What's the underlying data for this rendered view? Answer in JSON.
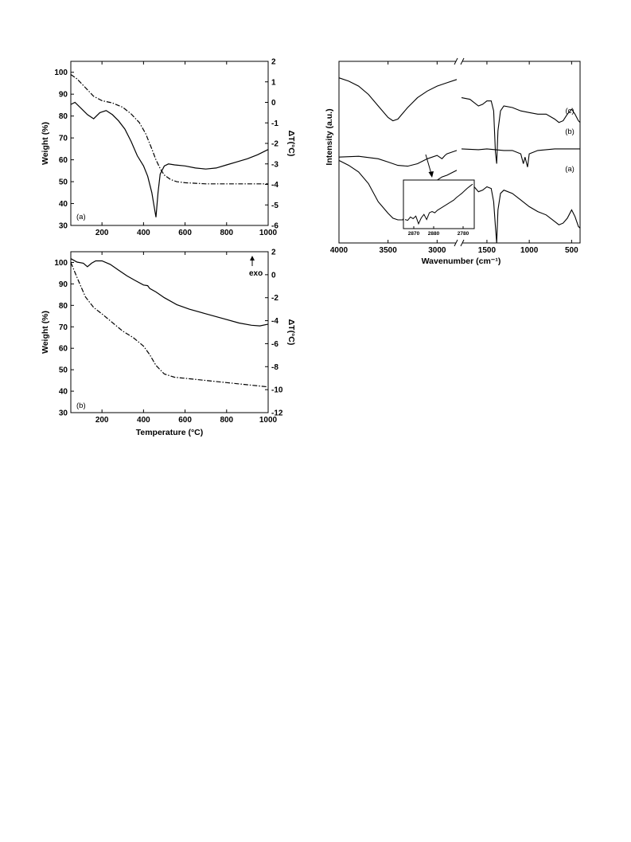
{
  "chart_data": [
    {
      "type": "line",
      "panel_label": "(a)",
      "xlim": [
        50,
        1000
      ],
      "ylim_left": [
        30,
        105
      ],
      "ylim_right": [
        -6,
        2
      ],
      "xticks": [
        200,
        400,
        600,
        800,
        1000
      ],
      "yticks_left": [
        30,
        40,
        50,
        60,
        70,
        80,
        90,
        100
      ],
      "yticks_right": [
        -6,
        -5,
        -4,
        -3,
        -2,
        -1,
        0,
        1,
        2
      ],
      "ylabel": "Weight (%)",
      "ylabel_right": "ΔT(°C)",
      "xlabel": "",
      "series": [
        {
          "axis": "left",
          "style": "dashdot",
          "x": [
            50,
            80,
            120,
            160,
            200,
            250,
            300,
            340,
            380,
            410,
            440,
            460,
            480,
            500,
            530,
            560,
            600,
            700,
            800,
            900,
            1000
          ],
          "y": [
            99,
            97,
            93,
            89,
            87,
            86,
            84,
            81,
            77,
            72,
            65,
            60,
            56,
            53,
            51,
            50,
            49.5,
            49,
            49,
            49,
            49
          ]
        },
        {
          "axis": "right",
          "style": "solid",
          "x": [
            50,
            70,
            100,
            130,
            160,
            190,
            220,
            250,
            280,
            310,
            340,
            370,
            400,
            420,
            440,
            450,
            460,
            470,
            480,
            500,
            520,
            550,
            600,
            650,
            700,
            750,
            800,
            850,
            900,
            950,
            1000
          ],
          "y": [
            -0.1,
            0.0,
            -0.3,
            -0.6,
            -0.8,
            -0.5,
            -0.4,
            -0.6,
            -0.9,
            -1.3,
            -1.9,
            -2.6,
            -3.1,
            -3.6,
            -4.4,
            -5.0,
            -5.6,
            -4.4,
            -3.5,
            -3.1,
            -3.0,
            -3.05,
            -3.1,
            -3.2,
            -3.25,
            -3.2,
            -3.05,
            -2.9,
            -2.75,
            -2.55,
            -2.3
          ]
        }
      ]
    },
    {
      "type": "line",
      "panel_label": "(b)",
      "annotation": "exo",
      "xlim": [
        50,
        1000
      ],
      "ylim_left": [
        30,
        105
      ],
      "ylim_right": [
        -12,
        2
      ],
      "xticks": [
        200,
        400,
        600,
        800,
        1000
      ],
      "yticks_left": [
        30,
        40,
        50,
        60,
        70,
        80,
        90,
        100
      ],
      "yticks_right": [
        -12,
        -10,
        -8,
        -6,
        -4,
        -2,
        0,
        2
      ],
      "ylabel": "Weight (%)",
      "ylabel_right": "ΔT(°C)",
      "xlabel": "Temperature (°C)",
      "series": [
        {
          "axis": "left",
          "style": "dashdot",
          "x": [
            50,
            80,
            120,
            160,
            200,
            250,
            300,
            350,
            400,
            430,
            460,
            500,
            550,
            600,
            700,
            800,
            900,
            1000
          ],
          "y": [
            100,
            93,
            84,
            79,
            76,
            72,
            68,
            65,
            61,
            57,
            52,
            48,
            46.5,
            46,
            45,
            44,
            43,
            42
          ]
        },
        {
          "axis": "right",
          "style": "solid",
          "x": [
            50,
            80,
            110,
            130,
            150,
            170,
            200,
            240,
            280,
            320,
            360,
            400,
            420,
            430,
            460,
            500,
            560,
            620,
            700,
            780,
            860,
            920,
            960,
            1000
          ],
          "y": [
            1.4,
            1.1,
            1.0,
            0.7,
            1.0,
            1.2,
            1.2,
            0.9,
            0.4,
            -0.1,
            -0.5,
            -0.9,
            -0.95,
            -1.2,
            -1.5,
            -2.0,
            -2.6,
            -3.0,
            -3.4,
            -3.8,
            -4.2,
            -4.4,
            -4.45,
            -4.3
          ]
        }
      ]
    },
    {
      "type": "line",
      "xlim": [
        4000,
        400
      ],
      "xticks": [
        4000,
        3500,
        3000,
        1500,
        1000,
        500
      ],
      "axis_break_x": [
        2800,
        1800
      ],
      "xlabel": "Wavenumber (cm⁻¹)",
      "ylabel": "Intensity (a.u.)",
      "series": [
        {
          "name": "(c)",
          "x": [
            4000,
            3900,
            3800,
            3700,
            3600,
            3500,
            3450,
            3400,
            3300,
            3200,
            3100,
            3000,
            2900,
            2800,
            1800,
            1700,
            1600,
            1550,
            1500,
            1450,
            1420,
            1400,
            1385,
            1370,
            1340,
            1300,
            1200,
            1100,
            1000,
            900,
            800,
            700,
            650,
            600,
            550,
            500,
            460,
            420,
            400
          ],
          "y": [
            90,
            88,
            85,
            80,
            73,
            66,
            64,
            65,
            72,
            78,
            82,
            85,
            87,
            89,
            78,
            77,
            73,
            74,
            76,
            76,
            70,
            45,
            38,
            58,
            70,
            73,
            72,
            70,
            69,
            68,
            68,
            65,
            63,
            64,
            68,
            71,
            68,
            64,
            63
          ]
        },
        {
          "name": "(b)",
          "x": [
            4000,
            3800,
            3600,
            3500,
            3400,
            3300,
            3200,
            3100,
            3000,
            2950,
            2920,
            2900,
            2850,
            2800,
            1800,
            1600,
            1500,
            1400,
            1300,
            1200,
            1100,
            1070,
            1050,
            1020,
            1000,
            950,
            900,
            800,
            700,
            600,
            500,
            400
          ],
          "y": [
            42,
            42.5,
            41,
            39,
            37,
            36.5,
            38,
            41,
            43,
            41,
            43,
            44,
            45,
            46,
            47,
            46.5,
            47,
            46.5,
            46,
            46,
            44,
            38,
            42,
            36,
            44,
            45,
            46,
            46.5,
            47,
            47,
            47,
            47
          ]
        },
        {
          "name": "(a)",
          "x": [
            4000,
            3900,
            3800,
            3700,
            3600,
            3500,
            3450,
            3400,
            3350,
            3300,
            3200,
            3100,
            3050,
            3000,
            2950,
            2900,
            2850,
            2800,
            1800,
            1700,
            1600,
            1550,
            1500,
            1450,
            1420,
            1400,
            1385,
            1370,
            1340,
            1300,
            1200,
            1100,
            1000,
            900,
            800,
            700,
            650,
            600,
            550,
            500,
            460,
            420,
            400
          ],
          "y": [
            40,
            37,
            33,
            26,
            15,
            8,
            5,
            4,
            4,
            10,
            18,
            23,
            26,
            28,
            30,
            31,
            32.5,
            34,
            27,
            27,
            21,
            22,
            24,
            23,
            15,
            0,
            -10,
            10,
            20,
            22,
            20,
            16,
            12,
            9,
            7,
            3,
            1,
            2,
            5,
            10,
            6,
            0,
            -1
          ]
        }
      ],
      "inset": {
        "xticks": [
          "2870",
          "2880",
          "2780"
        ],
        "x": [
          0,
          4,
          8,
          12,
          16,
          20,
          24,
          28,
          32,
          36,
          40,
          44,
          48,
          52,
          56,
          60,
          64,
          68,
          72,
          76,
          80,
          84,
          88,
          92,
          96,
          100
        ],
        "y": [
          14,
          12,
          20,
          16,
          22,
          4,
          18,
          26,
          14,
          30,
          33,
          30,
          36,
          40,
          44,
          48,
          52,
          56,
          60,
          66,
          71,
          76,
          82,
          88,
          93,
          98
        ]
      }
    }
  ]
}
